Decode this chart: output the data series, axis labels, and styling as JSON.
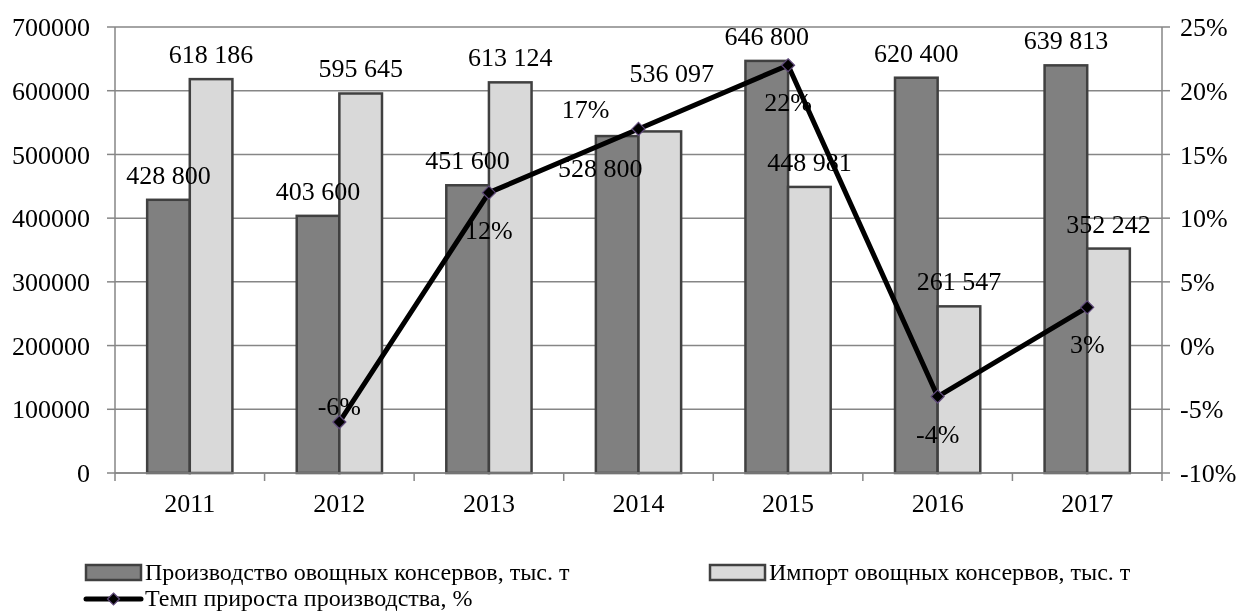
{
  "chart_data": {
    "type": "bar",
    "categories": [
      "2011",
      "2012",
      "2013",
      "2014",
      "2015",
      "2016",
      "2017"
    ],
    "series": [
      {
        "name": "Производство овощных консервов, тыс. т",
        "color": "#808080",
        "values": [
          428800,
          403600,
          451600,
          528800,
          646800,
          620400,
          639813
        ],
        "value_labels": [
          "428 800",
          "403 600",
          "451 600",
          "528 800",
          "646 800",
          "620 400",
          "639 813"
        ]
      },
      {
        "name": "Импорт овощных консервов, тыс. т",
        "color": "#d9d9d9",
        "values": [
          618186,
          595645,
          613124,
          536097,
          448981,
          261547,
          352242
        ],
        "value_labels": [
          "618 186",
          "595 645",
          "613 124",
          "536 097",
          "448 981",
          "261 547",
          "352 242"
        ]
      },
      {
        "name": "Темп прироста производства, %",
        "type": "line",
        "axis": "y2",
        "color": "#000000",
        "marker": "diamond",
        "values": [
          null,
          -6,
          12,
          17,
          22,
          -4,
          3
        ],
        "value_labels": [
          null,
          "-6%",
          "12%",
          "17%",
          "22%",
          "-4%",
          "3%"
        ]
      }
    ],
    "ylim": [
      0,
      700000
    ],
    "yticks": [
      0,
      100000,
      200000,
      300000,
      400000,
      500000,
      600000,
      700000
    ],
    "y2lim": [
      -10,
      25
    ],
    "y2ticks": [
      {
        "value": -10,
        "label": "-10%"
      },
      {
        "value": -5,
        "label": "-5%"
      },
      {
        "value": 0,
        "label": "0%"
      },
      {
        "value": 5,
        "label": "5%"
      },
      {
        "value": 10,
        "label": "10%"
      },
      {
        "value": 15,
        "label": "15%"
      },
      {
        "value": 20,
        "label": "20%"
      },
      {
        "value": 25,
        "label": "25%"
      }
    ],
    "grid": "y",
    "legend": "bottom"
  }
}
